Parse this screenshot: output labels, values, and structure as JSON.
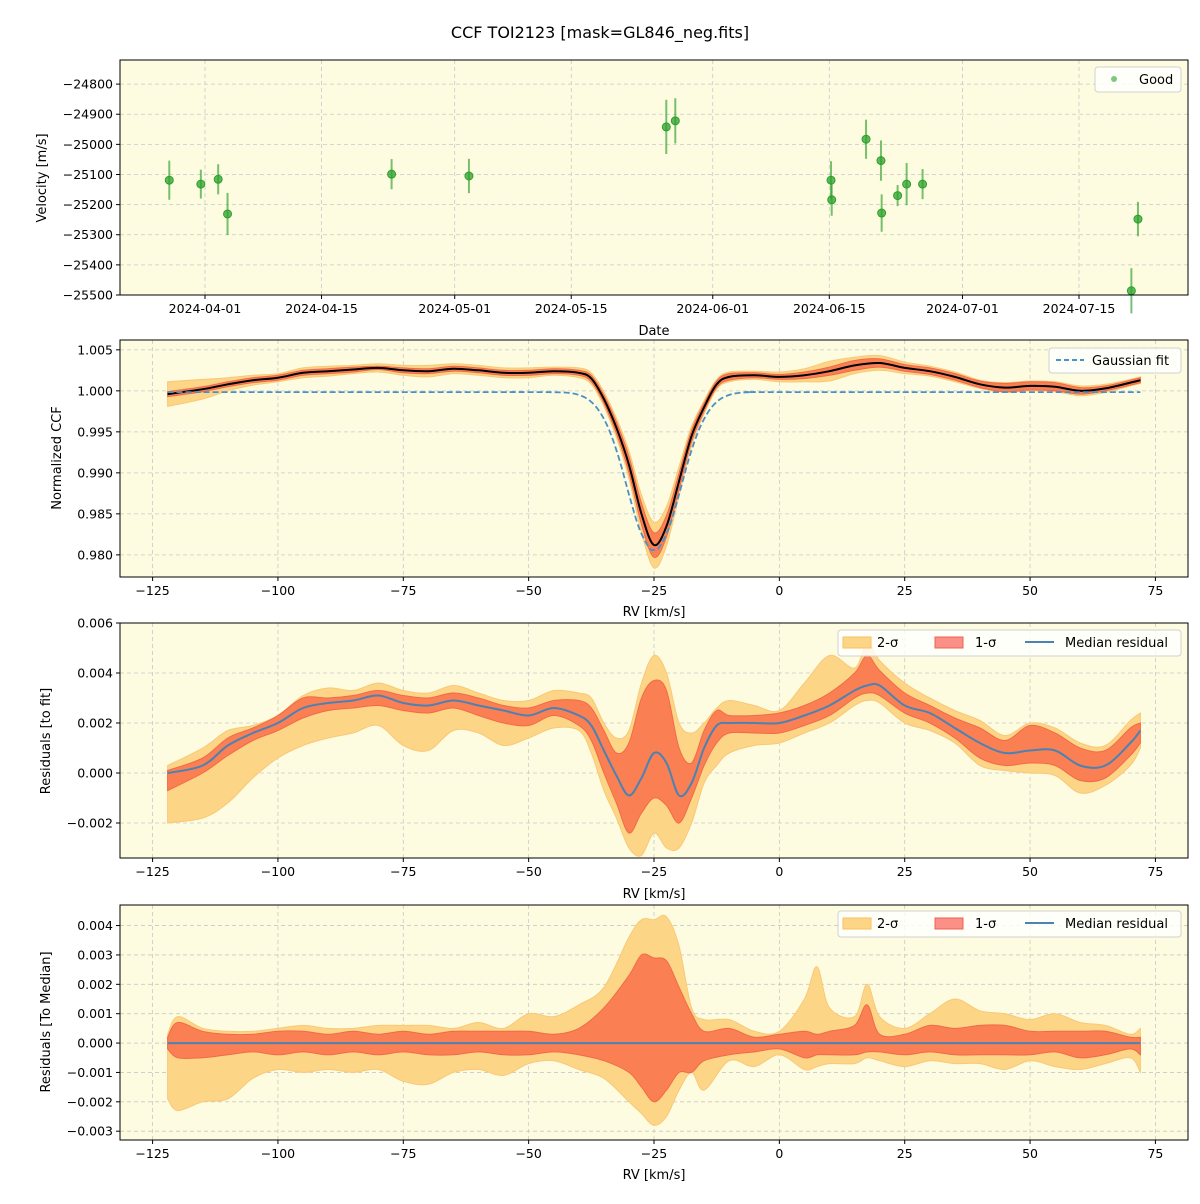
{
  "title": "CCF TOI2123 [mask=GL846_neg.fits]",
  "colors": {
    "background": "#fefce0",
    "good": "#2ca02c",
    "sigma2": "#fdd587",
    "sigma1": "#fa8054",
    "median_ccf": "#000000",
    "median_residual": "#4a82b4",
    "gaussian": "#4a90c8",
    "grid": "#c8c8c8"
  },
  "chart_data": [
    {
      "type": "scatter",
      "xlabel": "Date",
      "ylabel": "Velocity [m/s]",
      "ylim": [
        -25500,
        -24720
      ],
      "xticks": [
        "2024-04-01",
        "2024-04-15",
        "2024-05-01",
        "2024-05-15",
        "2024-06-01",
        "2024-06-15",
        "2024-07-01",
        "2024-07-15"
      ],
      "yticks": [
        -24800,
        -24900,
        -25000,
        -25100,
        -25200,
        -25300,
        -25400,
        -25500
      ],
      "grid": true,
      "legend": {
        "placement": "top-right",
        "entries": [
          "Good"
        ]
      },
      "series": [
        {
          "name": "Good",
          "x": [
            "2024-03-27T17",
            "2024-03-31T12",
            "2024-04-02T14",
            "2024-04-03T17",
            "2024-04-23T10",
            "2024-05-02T17",
            "2024-05-26T10",
            "2024-05-27T12",
            "2024-06-15T05",
            "2024-06-15T07",
            "2024-06-19T10",
            "2024-06-21T05",
            "2024-06-21T07",
            "2024-06-23T05",
            "2024-06-24T07",
            "2024-06-26T05",
            "2024-07-21T07",
            "2024-07-22T02"
          ],
          "y": [
            -25119,
            -25132,
            -25116,
            -25231,
            -25099,
            -25105,
            -24942,
            -24922,
            -25119,
            -25184,
            -24983,
            -25054,
            -25228,
            -25170,
            -25132,
            -25132,
            -25486,
            -25248
          ],
          "yerr": [
            65,
            48,
            50,
            70,
            50,
            57,
            90,
            75,
            63,
            53,
            65,
            67,
            62,
            35,
            70,
            50,
            75,
            57
          ]
        }
      ]
    },
    {
      "type": "line",
      "xlabel": "RV [km/s]",
      "ylabel": "Normalized CCF",
      "xlim": [
        -131.5,
        81.5
      ],
      "ylim": [
        0.9773,
        1.0062
      ],
      "xticks": [
        -125,
        -100,
        -75,
        -50,
        -25,
        0,
        25,
        50,
        75
      ],
      "yticks": [
        1.005,
        1.0,
        0.995,
        0.99,
        0.985,
        0.98
      ],
      "grid": true,
      "legend": {
        "placement": "top-right",
        "entries": [
          "Gaussian fit"
        ]
      },
      "x": [
        -122,
        -115,
        -110,
        -105,
        -100,
        -95,
        -90,
        -85,
        -80,
        -75,
        -70,
        -65,
        -60,
        -55,
        -50,
        -45,
        -40,
        -37.5,
        -35,
        -32.5,
        -30,
        -27.5,
        -25,
        -22.5,
        -20,
        -17.5,
        -15,
        -12.5,
        -10,
        -5,
        0,
        5,
        10,
        15,
        20,
        25,
        30,
        35,
        40,
        45,
        50,
        55,
        60,
        65,
        70,
        72
      ],
      "median": [
        0.9996,
        1.0002,
        1.0008,
        1.0013,
        1.0016,
        1.0022,
        1.0024,
        1.0026,
        1.0028,
        1.0025,
        1.0024,
        1.0027,
        1.0025,
        1.0022,
        1.0022,
        1.0024,
        1.0022,
        1.0015,
        0.999,
        0.9955,
        0.991,
        0.985,
        0.9812,
        0.9835,
        0.989,
        0.9945,
        0.998,
        1.0008,
        1.0017,
        1.0019,
        1.0017,
        1.0019,
        1.0024,
        1.0031,
        1.0034,
        1.0028,
        1.0024,
        1.0017,
        1.0008,
        1.0004,
        1.0006,
        1.0005,
        1.0,
        1.0003,
        1.001,
        1.0013
      ],
      "sigma1": [
        0.0003,
        0.0003,
        0.0003,
        0.0003,
        0.0003,
        0.0003,
        0.0003,
        0.0003,
        0.0002,
        0.0003,
        0.0003,
        0.0003,
        0.0003,
        0.0003,
        0.0003,
        0.0003,
        0.0003,
        0.0004,
        0.0005,
        0.0007,
        0.001,
        0.0013,
        0.0015,
        0.0013,
        0.001,
        0.0007,
        0.0005,
        0.0004,
        0.0004,
        0.0003,
        0.0003,
        0.0004,
        0.0005,
        0.0006,
        0.0005,
        0.0004,
        0.0004,
        0.0004,
        0.0004,
        0.0005,
        0.0005,
        0.0005,
        0.0004,
        0.0003,
        0.0003,
        0.0003
      ],
      "sigma2": [
        0.0015,
        0.0012,
        0.0008,
        0.0006,
        0.0005,
        0.0006,
        0.0006,
        0.0005,
        0.0005,
        0.0006,
        0.0007,
        0.0006,
        0.0006,
        0.0006,
        0.0006,
        0.0005,
        0.0006,
        0.0007,
        0.0009,
        0.0012,
        0.0017,
        0.0023,
        0.0028,
        0.0024,
        0.0018,
        0.0012,
        0.0008,
        0.0006,
        0.0006,
        0.0005,
        0.0006,
        0.0008,
        0.0012,
        0.001,
        0.0009,
        0.0007,
        0.0006,
        0.0006,
        0.0005,
        0.0006,
        0.0006,
        0.0006,
        0.0006,
        0.0005,
        0.0004,
        0.0004
      ],
      "gaussian_fit": {
        "name": "Gaussian fit",
        "x": [
          -122,
          -60,
          -50,
          -45,
          -42,
          -40,
          -38,
          -36,
          -34,
          -32,
          -30,
          -28,
          -26,
          -25,
          -24,
          -22,
          -20,
          -18,
          -16,
          -14,
          -12,
          -10,
          -8,
          -5,
          0,
          72
        ],
        "y": [
          0.99985,
          0.99985,
          0.99985,
          0.99983,
          0.99975,
          0.9995,
          0.9989,
          0.9976,
          0.9953,
          0.9918,
          0.9874,
          0.9833,
          0.9809,
          0.9806,
          0.9809,
          0.9833,
          0.9874,
          0.9918,
          0.9953,
          0.9976,
          0.9989,
          0.9995,
          0.99975,
          0.99985,
          0.99985,
          0.99985
        ]
      }
    },
    {
      "type": "area",
      "xlabel": "RV [km/s]",
      "ylabel": "Residuals [to fit]",
      "xlim": [
        -131.5,
        81.5
      ],
      "ylim": [
        -0.0034,
        0.006
      ],
      "xticks": [
        -125,
        -100,
        -75,
        -50,
        -25,
        0,
        25,
        50,
        75
      ],
      "yticks": [
        0.006,
        0.004,
        0.002,
        0.0,
        -0.002
      ],
      "grid": true,
      "legend": {
        "placement": "top-right",
        "entries": [
          "2-σ",
          "1-σ",
          "Median residual"
        ]
      },
      "x": [
        -122,
        -115,
        -110,
        -105,
        -100,
        -95,
        -90,
        -85,
        -80,
        -75,
        -70,
        -65,
        -60,
        -55,
        -50,
        -45,
        -40,
        -37.5,
        -35,
        -32.5,
        -30,
        -27.5,
        -25,
        -22.5,
        -20,
        -17.5,
        -15,
        -12.5,
        -10,
        -5,
        0,
        5,
        10,
        15,
        17.5,
        20,
        25,
        30,
        35,
        40,
        45,
        50,
        55,
        60,
        65,
        70,
        72
      ],
      "median": [
        0.0,
        0.0003,
        0.0011,
        0.0016,
        0.002,
        0.0026,
        0.0028,
        0.0029,
        0.0031,
        0.0028,
        0.0027,
        0.0029,
        0.0027,
        0.0025,
        0.0023,
        0.0026,
        0.0023,
        0.0019,
        0.0009,
        -0.0001,
        -0.0009,
        -0.0002,
        0.0008,
        0.0004,
        -0.0009,
        -0.0004,
        0.001,
        0.0019,
        0.002,
        0.002,
        0.002,
        0.0023,
        0.0027,
        0.0033,
        0.0035,
        0.0035,
        0.0027,
        0.0024,
        0.0018,
        0.0012,
        0.0008,
        0.0009,
        0.0009,
        0.0003,
        0.0003,
        0.0012,
        0.0017
      ],
      "lo1": [
        -0.0007,
        0.0,
        0.0007,
        0.0013,
        0.0017,
        0.0022,
        0.0025,
        0.0026,
        0.0027,
        0.0025,
        0.0024,
        0.0026,
        0.0023,
        0.002,
        0.0019,
        0.0023,
        0.0019,
        0.0013,
        0.0,
        -0.0012,
        -0.0024,
        -0.0016,
        -0.001,
        -0.0013,
        -0.002,
        -0.001,
        0.0003,
        0.0012,
        0.0016,
        0.0016,
        0.0016,
        0.0019,
        0.0023,
        0.003,
        0.0032,
        0.0031,
        0.0024,
        0.002,
        0.0014,
        0.0006,
        0.0003,
        0.0004,
        0.0003,
        -0.0003,
        -0.0002,
        0.0007,
        0.0012
      ],
      "hi1": [
        0.0001,
        0.0006,
        0.0014,
        0.0018,
        0.0023,
        0.003,
        0.003,
        0.0031,
        0.0033,
        0.0031,
        0.003,
        0.0032,
        0.003,
        0.0027,
        0.0026,
        0.0029,
        0.0029,
        0.0026,
        0.0017,
        0.0008,
        0.0012,
        0.003,
        0.0037,
        0.0033,
        0.001,
        0.0004,
        0.0017,
        0.0025,
        0.0023,
        0.0023,
        0.0024,
        0.0027,
        0.0032,
        0.004,
        0.0047,
        0.0041,
        0.0032,
        0.0027,
        0.0022,
        0.0018,
        0.0013,
        0.0019,
        0.0016,
        0.001,
        0.0009,
        0.0018,
        0.002
      ],
      "lo2": [
        -0.002,
        -0.0018,
        -0.0012,
        -0.0002,
        0.0006,
        0.0011,
        0.0014,
        0.0016,
        0.0019,
        0.0011,
        0.0009,
        0.0017,
        0.0016,
        0.0011,
        0.0014,
        0.0018,
        0.0017,
        0.0008,
        -0.0007,
        -0.0018,
        -0.003,
        -0.0033,
        -0.0024,
        -0.003,
        -0.003,
        -0.002,
        -0.0004,
        0.0003,
        0.0008,
        0.0011,
        0.0012,
        0.0016,
        0.002,
        0.0027,
        0.0029,
        0.0028,
        0.002,
        0.0017,
        0.0012,
        0.0003,
        0.0001,
        0.0,
        -0.0001,
        -0.0008,
        -0.0005,
        0.0003,
        0.001
      ],
      "hi2": [
        0.0003,
        0.001,
        0.0017,
        0.0019,
        0.0023,
        0.0031,
        0.0034,
        0.0033,
        0.0036,
        0.0033,
        0.0032,
        0.0035,
        0.0032,
        0.0029,
        0.0029,
        0.0033,
        0.0032,
        0.003,
        0.002,
        0.0014,
        0.0017,
        0.0036,
        0.0047,
        0.004,
        0.002,
        0.0016,
        0.002,
        0.0026,
        0.0029,
        0.0027,
        0.0025,
        0.0036,
        0.0047,
        0.0042,
        0.0052,
        0.0045,
        0.0036,
        0.003,
        0.0025,
        0.0021,
        0.0015,
        0.002,
        0.0018,
        0.0012,
        0.0011,
        0.0021,
        0.0024
      ]
    },
    {
      "type": "area",
      "xlabel": "RV [km/s]",
      "ylabel": "Residuals [To Median]",
      "xlim": [
        -131.5,
        81.5
      ],
      "ylim": [
        -0.0033,
        0.0047
      ],
      "xticks": [
        -125,
        -100,
        -75,
        -50,
        -25,
        0,
        25,
        50,
        75
      ],
      "yticks": [
        0.004,
        0.003,
        0.002,
        0.001,
        0.0,
        -0.001,
        -0.002,
        -0.003
      ],
      "grid": true,
      "legend": {
        "placement": "top-right",
        "entries": [
          "2-σ",
          "1-σ",
          "Median residual"
        ]
      },
      "x": [
        -122,
        -120,
        -115,
        -110,
        -105,
        -100,
        -95,
        -90,
        -85,
        -80,
        -75,
        -70,
        -65,
        -60,
        -55,
        -50,
        -45,
        -40,
        -35,
        -30,
        -27.5,
        -25,
        -22.5,
        -20,
        -17.5,
        -15,
        -10,
        -5,
        0,
        5,
        7.5,
        10,
        15,
        17.5,
        20,
        25,
        30,
        35,
        40,
        45,
        50,
        55,
        60,
        65,
        70,
        72
      ],
      "median": [
        0,
        0,
        0,
        0,
        0,
        0,
        0,
        0,
        0,
        0,
        0,
        0,
        0,
        0,
        0,
        0,
        0,
        0,
        0,
        0,
        0,
        0,
        0,
        0,
        0,
        0,
        0,
        0,
        0,
        0,
        0,
        0,
        0,
        0,
        0,
        0,
        0,
        0,
        0,
        0,
        0,
        0,
        0,
        0,
        0,
        0
      ],
      "lo2": [
        -0.0019,
        -0.0023,
        -0.002,
        -0.0019,
        -0.0012,
        -0.0009,
        -0.001,
        -0.0009,
        -0.001,
        -0.0009,
        -0.0013,
        -0.0014,
        -0.001,
        -0.0009,
        -0.0011,
        -0.0007,
        -0.0006,
        -0.0009,
        -0.0012,
        -0.002,
        -0.0024,
        -0.0028,
        -0.0025,
        -0.0016,
        -0.001,
        -0.0016,
        -0.0006,
        -0.0008,
        -0.0004,
        -0.0009,
        -0.0008,
        -0.0007,
        -0.0007,
        -0.0005,
        -0.0006,
        -0.0008,
        -0.0006,
        -0.0007,
        -0.0007,
        -0.0009,
        -0.0006,
        -0.0008,
        -0.0009,
        -0.0007,
        -0.0005,
        -0.001
      ],
      "lo1": [
        -0.0002,
        -0.0005,
        -0.0005,
        -0.0004,
        -0.0003,
        -0.0004,
        -0.0003,
        -0.0004,
        -0.0003,
        -0.0004,
        -0.0003,
        -0.0004,
        -0.0004,
        -0.0003,
        -0.0004,
        -0.0004,
        -0.0003,
        -0.0004,
        -0.0006,
        -0.001,
        -0.0015,
        -0.002,
        -0.0016,
        -0.001,
        -0.001,
        -0.0006,
        -0.0004,
        -0.0003,
        -0.0002,
        -0.0005,
        -0.0004,
        -0.0004,
        -0.0004,
        -0.0003,
        -0.0003,
        -0.0004,
        -0.0003,
        -0.0004,
        -0.0004,
        -0.0004,
        -0.0004,
        -0.0003,
        -0.0005,
        -0.0004,
        -0.0002,
        -0.0004
      ],
      "hi1": [
        0.0002,
        0.0007,
        0.0004,
        0.0003,
        0.0003,
        0.0004,
        0.0004,
        0.0003,
        0.0004,
        0.0003,
        0.0004,
        0.0003,
        0.0004,
        0.0004,
        0.0004,
        0.0004,
        0.0003,
        0.0005,
        0.0012,
        0.0023,
        0.003,
        0.0029,
        0.0028,
        0.0019,
        0.001,
        0.0004,
        0.0005,
        0.0002,
        0.0003,
        0.0004,
        0.0003,
        0.0004,
        0.0006,
        0.0013,
        0.0003,
        0.0003,
        0.0006,
        0.0005,
        0.0006,
        0.0006,
        0.0004,
        0.0004,
        0.0004,
        0.0004,
        0.0002,
        0.0002
      ],
      "hi2": [
        0.0003,
        0.0009,
        0.0005,
        0.0004,
        0.0004,
        0.0005,
        0.0006,
        0.0005,
        0.0005,
        0.0006,
        0.0006,
        0.0006,
        0.0005,
        0.0007,
        0.0005,
        0.001,
        0.0009,
        0.0013,
        0.0019,
        0.0036,
        0.0042,
        0.0042,
        0.0043,
        0.0033,
        0.0012,
        0.0008,
        0.0008,
        0.0004,
        0.0004,
        0.0015,
        0.0026,
        0.0012,
        0.0009,
        0.002,
        0.0009,
        0.0005,
        0.001,
        0.0015,
        0.0011,
        0.001,
        0.0008,
        0.001,
        0.0007,
        0.0006,
        0.0003,
        0.0005
      ]
    }
  ]
}
